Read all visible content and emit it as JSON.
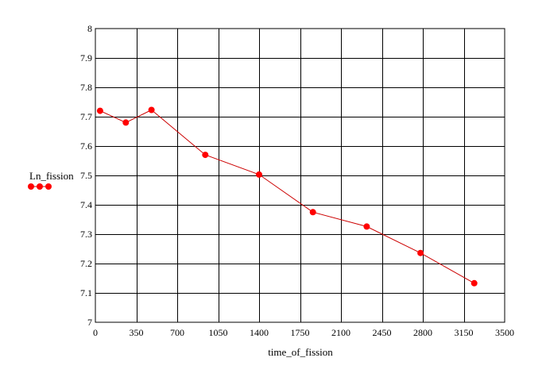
{
  "chart_data": {
    "type": "line",
    "xlabel": "time_of_fission",
    "ylabel": "Ln_fission",
    "xlim": [
      0,
      3500
    ],
    "ylim": [
      7,
      8
    ],
    "xticks": [
      "0",
      "350",
      "700",
      "1050",
      "1400",
      "1750",
      "2100",
      "2450",
      "2800",
      "3150",
      "3500"
    ],
    "yticks": [
      "7",
      "7.1",
      "7.2",
      "7.3",
      "7.4",
      "7.5",
      "7.6",
      "7.7",
      "7.8",
      "7.9",
      "8"
    ],
    "grid": true,
    "legend": "left of plot, with axis label",
    "series": [
      {
        "color": "#ff0000",
        "line_color": "#cc0000",
        "marker": "filled-circle",
        "x": [
          40,
          260,
          480,
          940,
          1400,
          1860,
          2320,
          2780,
          3240
        ],
        "y": [
          7.72,
          7.68,
          7.723,
          7.57,
          7.503,
          7.375,
          7.326,
          7.236,
          7.133
        ]
      }
    ]
  }
}
